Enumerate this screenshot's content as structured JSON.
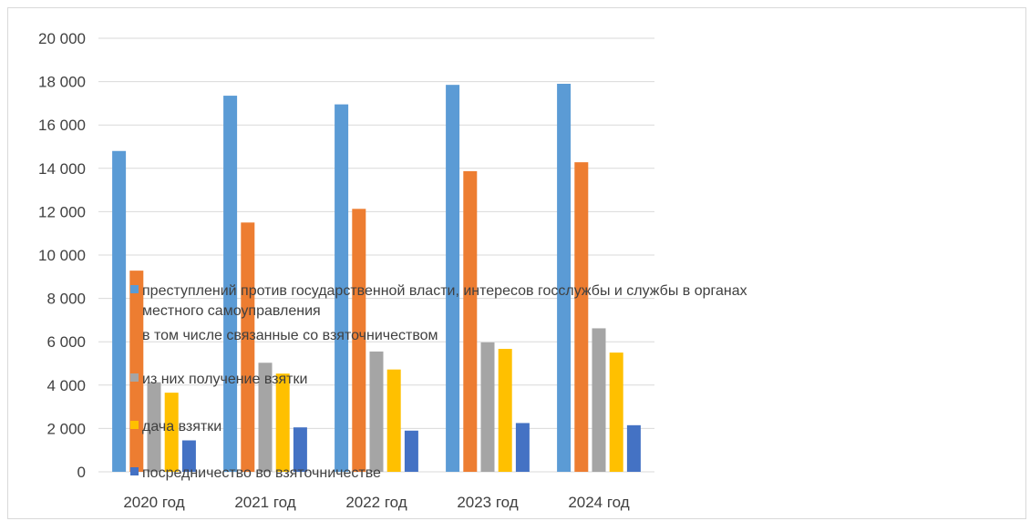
{
  "chart_data": {
    "type": "bar",
    "categories": [
      "2020 год",
      "2021 год",
      "2022 год",
      "2023 год",
      "2024 год"
    ],
    "ylim": [
      0,
      20000
    ],
    "yticks": [
      0,
      2000,
      4000,
      6000,
      8000,
      10000,
      12000,
      14000,
      16000,
      18000,
      20000
    ],
    "ytick_labels": [
      "0",
      "2 000",
      "4 000",
      "6 000",
      "8 000",
      "10 000",
      "12 000",
      "14 000",
      "16 000",
      "18 000",
      "20 000"
    ],
    "grid": true,
    "legend_position": "center-overlay",
    "series": [
      {
        "name": "преступлений против государственной власти, интересов госслужбы и службы в органах местного самоуправления",
        "legend_lines": [
          "преступлений против государственной власти, интересов госслужбы и службы в органах",
          "местного самоуправления"
        ],
        "color": "#5B9BD5",
        "values": [
          14800,
          17350,
          16950,
          17850,
          17900
        ]
      },
      {
        "name": "в том числе связанные со взяточничеством",
        "legend_lines": [
          "в том числе связанные со взяточничеством"
        ],
        "color": "#ED7D31",
        "values": [
          9280,
          11500,
          12130,
          13870,
          14280
        ]
      },
      {
        "name": "из них получение взятки",
        "legend_lines": [
          "из них получение взятки"
        ],
        "color": "#A5A5A5",
        "values": [
          4130,
          5030,
          5550,
          5970,
          6620
        ]
      },
      {
        "name": "дача взятки",
        "legend_lines": [
          "дача взятки"
        ],
        "color": "#FFC000",
        "values": [
          3650,
          4530,
          4720,
          5670,
          5500
        ]
      },
      {
        "name": "посредничество во взяточничестве",
        "legend_lines": [
          "посредничество во взяточничестве"
        ],
        "color": "#4472C4",
        "values": [
          1450,
          2050,
          1900,
          2250,
          2150
        ]
      }
    ]
  }
}
